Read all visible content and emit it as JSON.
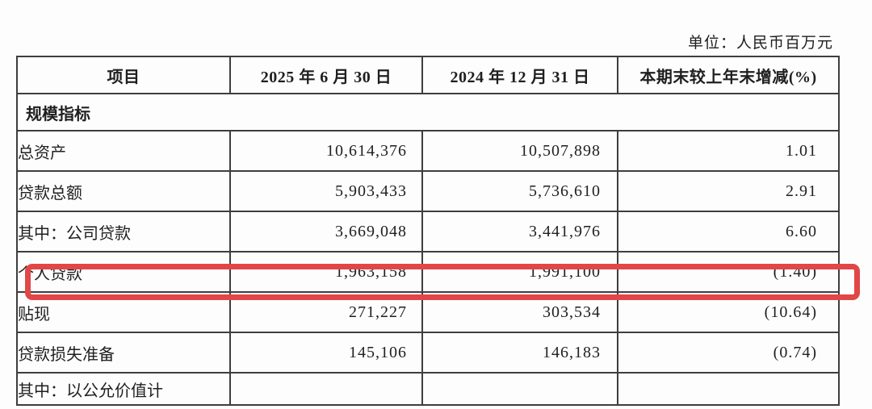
{
  "meta": {
    "unit_label": "单位：人民币百万元"
  },
  "table": {
    "highlight_color": "#e14747",
    "columns": [
      {
        "label": "项目"
      },
      {
        "label": "2025 年 6 月 30 日"
      },
      {
        "label": "2024 年 12 月 31 日"
      },
      {
        "label": "本期末较上年末增减(%)"
      }
    ],
    "rows": [
      {
        "label": "规模指标",
        "section": true,
        "v2025": "",
        "v2024": "",
        "change_pct": ""
      },
      {
        "label": "总资产",
        "indent": 0,
        "v2025": "10,614,376",
        "v2024": "10,507,898",
        "change_pct": "1.01"
      },
      {
        "label": "贷款总额",
        "indent": 0,
        "v2025": "5,903,433",
        "v2024": "5,736,610",
        "change_pct": "2.91"
      },
      {
        "label": "其中：公司贷款",
        "indent": 1,
        "v2025": "3,669,048",
        "v2024": "3,441,976",
        "change_pct": "6.60"
      },
      {
        "label": "个人贷款",
        "indent": 2,
        "v2025": "1,963,158",
        "v2024": "1,991,100",
        "change_pct": "(1.40)",
        "highlighted": true
      },
      {
        "label": "贴现",
        "indent": 2,
        "v2025": "271,227",
        "v2024": "303,534",
        "change_pct": "(10.64)"
      },
      {
        "label": "贷款损失准备",
        "indent": 0,
        "v2025": "145,106",
        "v2024": "146,183",
        "change_pct": "(0.74)"
      },
      {
        "label": "其中：以公允价值计",
        "indent": 1,
        "v2025": "",
        "v2024": "",
        "change_pct": "",
        "partial": true
      }
    ]
  }
}
